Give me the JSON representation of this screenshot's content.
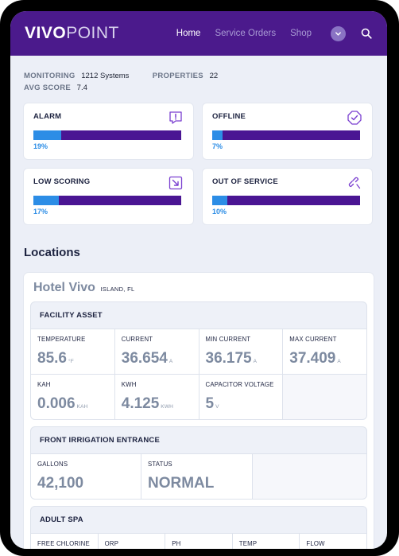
{
  "brand": {
    "vivo": "VIVO",
    "point": "POINT"
  },
  "nav": {
    "home": "Home",
    "service_orders": "Service Orders",
    "shop": "Shop"
  },
  "summary": {
    "monitoring_label": "MONITORING",
    "monitoring_value": "1212 Systems",
    "properties_label": "PROPERTIES",
    "properties_value": "22",
    "avg_score_label": "AVG SCORE",
    "avg_score_value": "7.4"
  },
  "stats": [
    {
      "title": "ALARM",
      "pct_label": "19%",
      "fraction": 0.19,
      "icon": "alert-message-icon"
    },
    {
      "title": "OFFLINE",
      "pct_label": "7%",
      "fraction": 0.07,
      "icon": "check-octagon-icon"
    },
    {
      "title": "LOW SCORING",
      "pct_label": "17%",
      "fraction": 0.17,
      "icon": "arrow-down-right-icon"
    },
    {
      "title": "OUT OF SERVICE",
      "pct_label": "10%",
      "fraction": 0.1,
      "icon": "broken-link-icon"
    }
  ],
  "locations_title": "Locations",
  "location": {
    "name": "Hotel Vivo",
    "region": "ISLAND, FL",
    "facility_asset": {
      "title": "FACILITY ASSET",
      "cells": [
        {
          "label": "TEMPERATURE",
          "value": "85.6",
          "unit": "°F"
        },
        {
          "label": "CURRENT",
          "value": "36.654",
          "unit": "A"
        },
        {
          "label": "MIN CURRENT",
          "value": "36.175",
          "unit": "A"
        },
        {
          "label": "MAX CURRENT",
          "value": "37.409",
          "unit": "A"
        },
        {
          "label": "KAH",
          "value": "0.006",
          "unit": "KAH"
        },
        {
          "label": "KWH",
          "value": "4.125",
          "unit": "KWH"
        },
        {
          "label": "CAPACITOR VOLTAGE",
          "value": "5",
          "unit": "V"
        }
      ]
    },
    "front_irrigation": {
      "title": "FRONT IRRIGATION ENTRANCE",
      "cells": [
        {
          "label": "GALLONS",
          "value": "42,100"
        },
        {
          "label": "STATUS",
          "value": "NORMAL"
        }
      ]
    },
    "adult_spa": {
      "title": "ADULT SPA",
      "cells": [
        {
          "label": "FREE CHLORINE"
        },
        {
          "label": "ORP"
        },
        {
          "label": "PH"
        },
        {
          "label": "TEMP"
        },
        {
          "label": "FLOW"
        }
      ]
    }
  },
  "colors": {
    "header": "#4b1a8c",
    "bar_track": "#4a1593",
    "bar_fill": "#2c8de6",
    "value_text": "#7d8aa0"
  }
}
